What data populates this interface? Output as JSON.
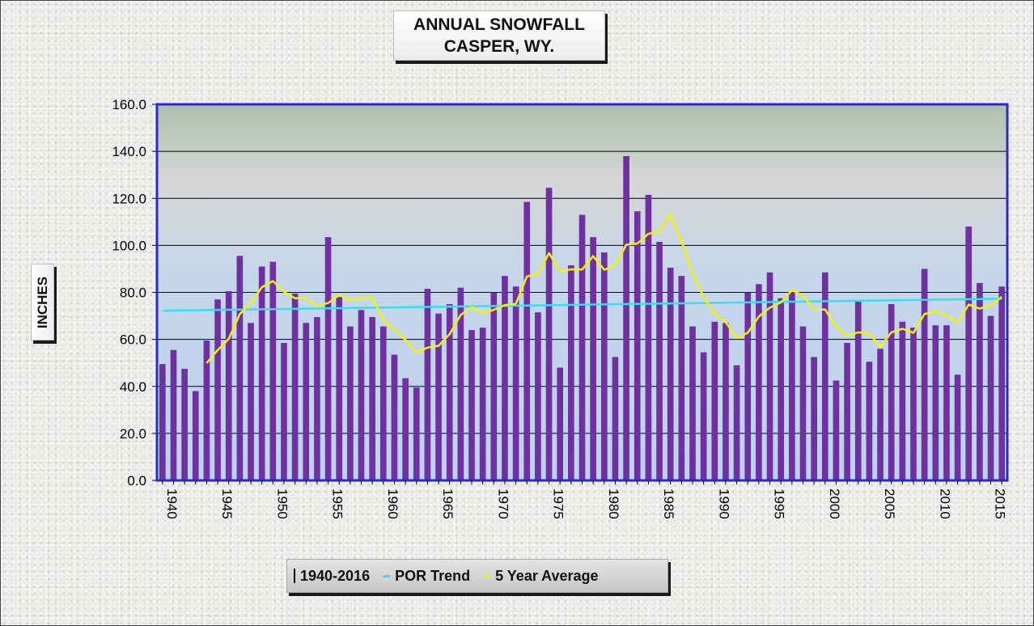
{
  "chart_data": {
    "type": "bar",
    "title": [
      "ANNUAL SNOWFALL",
      "CASPER, WY."
    ],
    "ylabel": "INCHES",
    "xlabel": "",
    "ylim": [
      0,
      160
    ],
    "yticks": [
      "0.0",
      "20.0",
      "40.0",
      "60.0",
      "80.0",
      "100.0",
      "120.0",
      "140.0",
      "160.0"
    ],
    "xticks": [
      "1940",
      "1945",
      "1950",
      "1955",
      "1960",
      "1965",
      "1970",
      "1975",
      "1980",
      "1985",
      "1990",
      "1995",
      "2000",
      "2005",
      "2010",
      "2015"
    ],
    "grid": true,
    "legend_position": "bottom",
    "x": [
      1940,
      1941,
      1942,
      1943,
      1944,
      1945,
      1946,
      1947,
      1948,
      1949,
      1950,
      1951,
      1952,
      1953,
      1954,
      1955,
      1956,
      1957,
      1958,
      1959,
      1960,
      1961,
      1962,
      1963,
      1964,
      1965,
      1966,
      1967,
      1968,
      1969,
      1970,
      1971,
      1972,
      1973,
      1974,
      1975,
      1976,
      1977,
      1978,
      1979,
      1980,
      1981,
      1982,
      1983,
      1984,
      1985,
      1986,
      1987,
      1988,
      1989,
      1990,
      1991,
      1992,
      1993,
      1994,
      1995,
      1996,
      1997,
      1998,
      1999,
      2000,
      2001,
      2002,
      2003,
      2004,
      2005,
      2006,
      2007,
      2008,
      2009,
      2010,
      2011,
      2012,
      2013,
      2014,
      2015,
      2016
    ],
    "series": [
      {
        "name": "1940-2016",
        "type": "bar",
        "color": "#7030a0",
        "values": [
          49.5,
          55.5,
          47.5,
          38.0,
          59.5,
          77.0,
          80.5,
          95.5,
          67.0,
          91.0,
          93.0,
          58.5,
          79.5,
          67.0,
          69.5,
          103.5,
          78.0,
          65.5,
          72.5,
          69.5,
          65.5,
          53.5,
          43.5,
          39.5,
          81.5,
          71.0,
          75.0,
          82.0,
          64.0,
          65.0,
          80.0,
          87.0,
          82.5,
          118.5,
          71.5,
          124.5,
          48.0,
          91.5,
          113.0,
          103.5,
          97.0,
          52.5,
          138.0,
          114.5,
          121.5,
          101.5,
          90.5,
          87.0,
          65.5,
          54.5,
          67.5,
          67.0,
          49.0,
          80.0,
          83.5,
          88.5,
          77.5,
          80.0,
          65.5,
          52.5,
          88.5,
          42.5,
          58.5,
          76.5,
          50.5,
          56.0,
          75.0,
          67.5,
          65.0,
          90.0,
          66.0,
          66.0,
          45.0,
          108.0,
          84.0,
          70.0,
          82.5
        ]
      },
      {
        "name": "POR Trend",
        "type": "line",
        "color": "#33e0f0",
        "start": [
          1940,
          72.2
        ],
        "end": [
          2016,
          77.3
        ]
      },
      {
        "name": "5 Year Average",
        "type": "line",
        "color": "#f2f20a",
        "x": [
          1944,
          1945,
          1946,
          1947,
          1948,
          1949,
          1950,
          1951,
          1952,
          1953,
          1954,
          1955,
          1956,
          1957,
          1958,
          1959,
          1960,
          1961,
          1962,
          1963,
          1964,
          1965,
          1966,
          1967,
          1968,
          1969,
          1970,
          1971,
          1972,
          1973,
          1974,
          1975,
          1976,
          1977,
          1978,
          1979,
          1980,
          1981,
          1982,
          1983,
          1984,
          1985,
          1986,
          1987,
          1988,
          1989,
          1990,
          1991,
          1992,
          1993,
          1994,
          1995,
          1996,
          1997,
          1998,
          1999,
          2000,
          2001,
          2002,
          2003,
          2004,
          2005,
          2006,
          2007,
          2008,
          2009,
          2010,
          2011,
          2012,
          2013,
          2014,
          2015,
          2016
        ],
        "values": [
          49.9,
          55.5,
          60.2,
          70.8,
          75.4,
          82.2,
          84.8,
          80.3,
          77.5,
          77.5,
          74.2,
          75.5,
          78.8,
          76.7,
          77.5,
          77.8,
          68.1,
          64.2,
          59.8,
          54.5,
          56.5,
          57.3,
          62.2,
          70.4,
          73.8,
          71.1,
          72.6,
          74.6,
          75.1,
          86.8,
          87.7,
          96.7,
          88.9,
          89.8,
          89.7,
          95.4,
          89.6,
          91.5,
          100.3,
          100.8,
          104.9,
          105.9,
          113.1,
          101.8,
          88.7,
          77.9,
          71.3,
          67.3,
          60.6,
          62.8,
          69.7,
          73.5,
          75.7,
          80.9,
          78.8,
          72.7,
          72.7,
          65.6,
          61.5,
          63.0,
          62.6,
          56.8,
          63.0,
          64.5,
          62.8,
          70.8,
          71.9,
          70.3,
          67.1,
          74.8,
          73.1,
          74.6,
          78.1
        ]
      }
    ]
  },
  "legend": {
    "bar_label": "1940-2016",
    "trend_label": "POR Trend",
    "avg_label": "5 Year Average"
  }
}
